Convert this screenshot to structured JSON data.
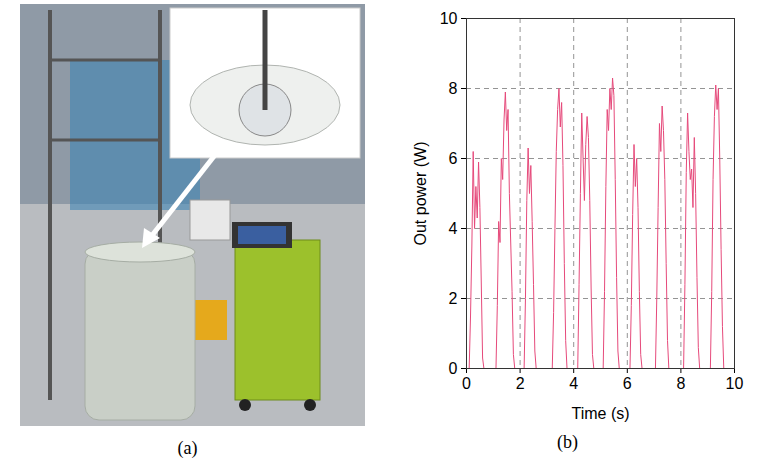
{
  "panel_labels": [
    "(a)",
    "(b)"
  ],
  "chart_data": {
    "type": "line",
    "xlabel": "Time (s)",
    "ylabel": "Out power (W)",
    "x": [
      0,
      0.1,
      0.15,
      0.2,
      0.25,
      0.3,
      0.35,
      0.4,
      0.45,
      0.5,
      0.55,
      0.6,
      0.65,
      1.1,
      1.15,
      1.2,
      1.25,
      1.3,
      1.35,
      1.4,
      1.45,
      1.5,
      1.55,
      1.6,
      1.7,
      1.75,
      1.8,
      2.15,
      2.2,
      2.25,
      2.3,
      2.35,
      2.4,
      2.45,
      2.5,
      2.55,
      2.6,
      3.2,
      3.25,
      3.3,
      3.35,
      3.4,
      3.45,
      3.5,
      3.55,
      3.6,
      3.65,
      3.7,
      3.75,
      4.15,
      4.2,
      4.25,
      4.3,
      4.35,
      4.4,
      4.45,
      4.5,
      4.55,
      4.6,
      4.65,
      4.7,
      4.75,
      5.1,
      5.15,
      5.2,
      5.25,
      5.3,
      5.35,
      5.4,
      5.45,
      5.5,
      5.55,
      5.6,
      5.65,
      5.7,
      6.1,
      6.15,
      6.2,
      6.25,
      6.3,
      6.35,
      6.4,
      6.45,
      6.5,
      6.55,
      7.05,
      7.1,
      7.15,
      7.2,
      7.25,
      7.3,
      7.35,
      7.4,
      7.45,
      7.5,
      7.55,
      8.1,
      8.15,
      8.2,
      8.25,
      8.3,
      8.35,
      8.4,
      8.45,
      8.5,
      8.55,
      8.6,
      8.65,
      8.7,
      9.1,
      9.15,
      9.2,
      9.25,
      9.3,
      9.35,
      9.4,
      9.45,
      9.5,
      9.55,
      9.6,
      9.8
    ],
    "values": [
      0,
      0,
      1.5,
      3.5,
      6.2,
      4.0,
      5.2,
      4.3,
      5.9,
      4.6,
      2.5,
      0.3,
      0,
      0,
      1.8,
      4.2,
      3.6,
      6.0,
      5.4,
      7.1,
      7.9,
      6.8,
      7.4,
      5.0,
      2.2,
      0.4,
      0,
      0,
      2.0,
      4.8,
      6.3,
      5.0,
      5.8,
      4.2,
      2.4,
      0.5,
      0,
      0,
      1.6,
      4.0,
      6.2,
      7.4,
      8.0,
      6.9,
      7.6,
      5.8,
      3.0,
      0.8,
      0,
      0,
      2.4,
      5.0,
      7.3,
      6.0,
      4.8,
      6.4,
      7.2,
      6.6,
      4.8,
      2.3,
      0.4,
      0,
      0,
      2.2,
      5.2,
      7.4,
      6.8,
      8.0,
      7.4,
      8.3,
      7.8,
      5.4,
      2.6,
      0.5,
      0,
      0,
      1.8,
      4.4,
      6.4,
      5.2,
      6.0,
      4.6,
      2.2,
      0.4,
      0,
      0,
      2.0,
      4.6,
      7.0,
      6.2,
      7.5,
      6.8,
      5.4,
      3.0,
      0.8,
      0,
      0,
      2.4,
      5.6,
      7.3,
      6.2,
      5.4,
      5.7,
      4.6,
      6.6,
      5.0,
      2.6,
      0.6,
      0,
      0,
      2.2,
      5.4,
      7.2,
      8.1,
      7.4,
      8.0,
      6.0,
      3.4,
      1.2,
      0,
      0
    ],
    "color": "#e64a7b",
    "xlim": [
      0,
      10
    ],
    "ylim": [
      0,
      10
    ],
    "xticks": [
      0,
      2,
      4,
      6,
      8,
      10
    ],
    "yticks": [
      0,
      2,
      4,
      6,
      8,
      10
    ],
    "grid": true
  }
}
